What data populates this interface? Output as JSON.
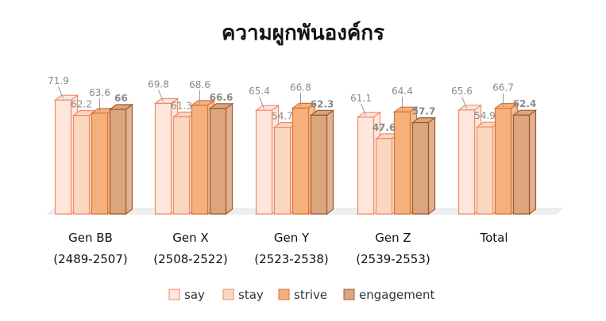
{
  "chart_data": {
    "type": "bar",
    "title": "ความผูกพันองค์กร",
    "categories": [
      {
        "name": "Gen BB",
        "range": "(2489-2507)"
      },
      {
        "name": "Gen X",
        "range": "(2508-2522)"
      },
      {
        "name": "Gen Y",
        "range": "(2523-2538)"
      },
      {
        "name": "Gen Z",
        "range": "(2539-2553)"
      },
      {
        "name": "Total",
        "range": ""
      }
    ],
    "series": [
      {
        "name": "say",
        "values": [
          71.9,
          69.8,
          65.4,
          61.1,
          65.6
        ]
      },
      {
        "name": "stay",
        "values": [
          62.2,
          61.3,
          54.7,
          47.6,
          54.9
        ]
      },
      {
        "name": "strive",
        "values": [
          63.6,
          68.6,
          66.8,
          64.4,
          66.7
        ]
      },
      {
        "name": "engagement",
        "values": [
          66,
          66.6,
          62.3,
          57.7,
          62.4
        ]
      }
    ],
    "ylim": [
      0,
      80
    ],
    "legend_position": "bottom",
    "grid": false,
    "colors": {
      "say": "#fde6dc",
      "stay": "#fad8c0",
      "strive": "#f5b07e",
      "engagement": "#dba57e",
      "say_edge": "#f08a6a",
      "stay_edge": "#f08a6a",
      "strive_edge": "#d97332",
      "engagement_edge": "#9c5a2c",
      "label_default": "#8a8a8a",
      "label_engagement": "#cc6a1a",
      "label_highlight": "#e0201b"
    },
    "highlight": {
      "series": "stay",
      "category": "Gen Z"
    }
  }
}
